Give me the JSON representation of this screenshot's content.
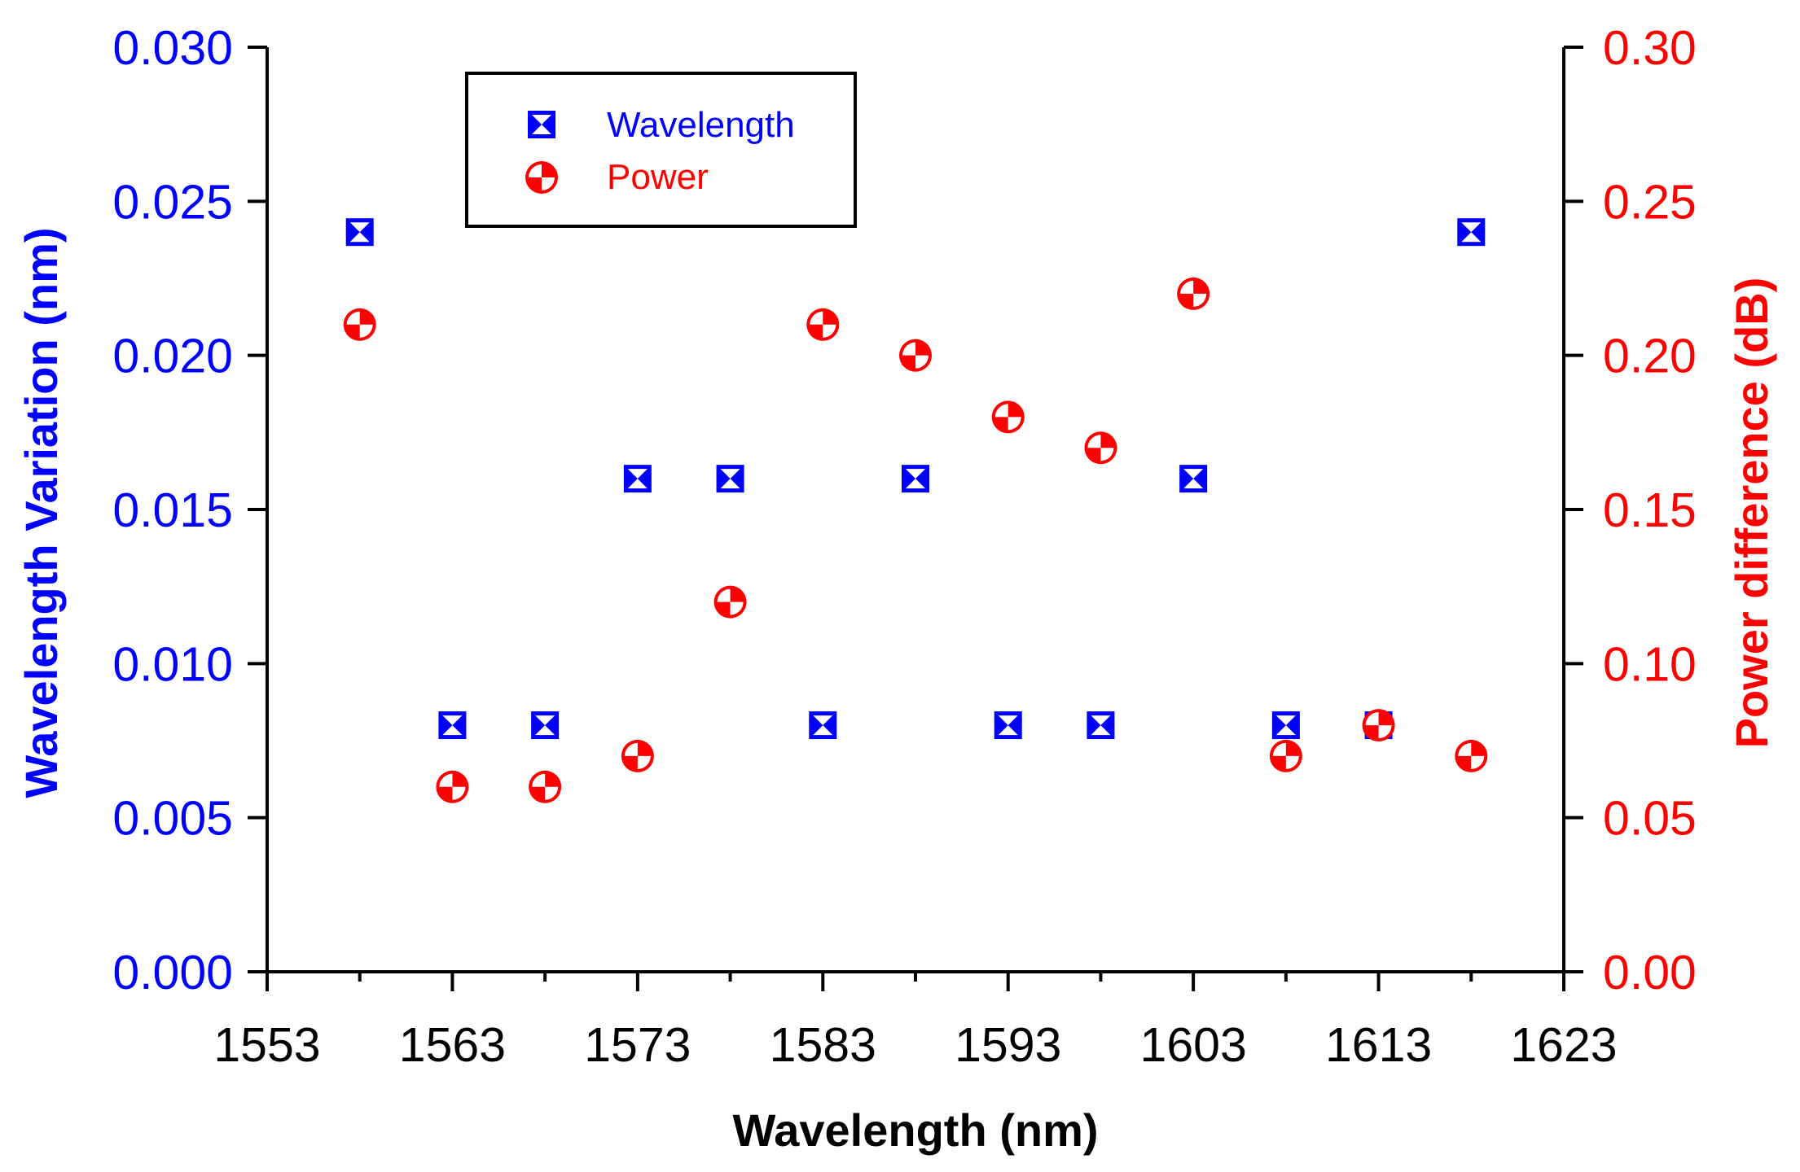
{
  "chart_data": {
    "type": "scatter",
    "xlabel": "Wavelength (nm)",
    "ylabel_left": "Wavelength Variation (nm)",
    "ylabel_right": "Power difference (dB)",
    "xlim": [
      1553,
      1623
    ],
    "ylim_left": [
      0,
      0.03
    ],
    "ylim_right": [
      0,
      0.3
    ],
    "x_ticks": [
      "1553",
      "1563",
      "1573",
      "1583",
      "1593",
      "1603",
      "1613",
      "1623"
    ],
    "y_left_ticks": [
      "0.000",
      "0.005",
      "0.010",
      "0.015",
      "0.020",
      "0.025",
      "0.030"
    ],
    "y_right_ticks": [
      "0.00",
      "0.05",
      "0.10",
      "0.15",
      "0.20",
      "0.25",
      "0.30"
    ],
    "grid": false,
    "legend_position": "top-left",
    "series": [
      {
        "name": "Wavelength",
        "axis": "left",
        "color": "#0000ff",
        "marker": "square-x",
        "x": [
          1558,
          1563,
          1568,
          1573,
          1578,
          1583,
          1588,
          1593,
          1598,
          1603,
          1608,
          1613,
          1618
        ],
        "y": [
          0.024,
          0.008,
          0.008,
          0.016,
          0.016,
          0.008,
          0.016,
          0.008,
          0.008,
          0.016,
          0.008,
          0.008,
          0.024
        ]
      },
      {
        "name": "Power",
        "axis": "right",
        "color": "#ff0000",
        "marker": "circle-quartered",
        "x": [
          1558,
          1563,
          1568,
          1573,
          1578,
          1583,
          1588,
          1593,
          1598,
          1603,
          1608,
          1613,
          1618
        ],
        "y": [
          0.21,
          0.06,
          0.06,
          0.07,
          0.12,
          0.21,
          0.2,
          0.18,
          0.17,
          0.22,
          0.07,
          0.08,
          0.07
        ]
      }
    ]
  }
}
